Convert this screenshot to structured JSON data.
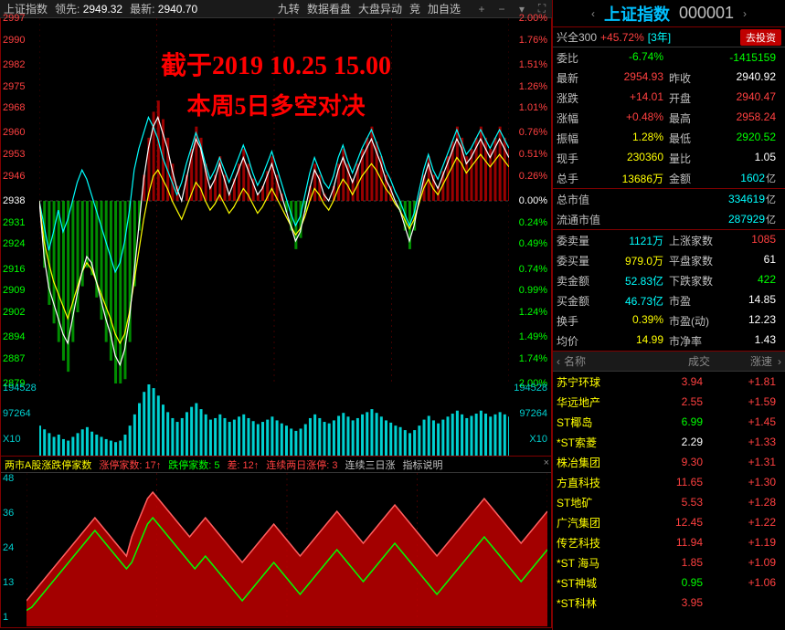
{
  "toolbar": {
    "title": "上证指数",
    "lead_label": "领先:",
    "lead_value": "2949.32",
    "latest_label": "最新:",
    "latest_value": "2940.70",
    "items": [
      "九转",
      "数据看盘",
      "大盘异动",
      "竞",
      "加自选"
    ]
  },
  "overlay": {
    "line1": "截于2019 10.25 15.00",
    "line2": "本周5日多空对决"
  },
  "main_chart": {
    "type": "line",
    "baseline": 2938,
    "ylim": [
      2879,
      2997
    ],
    "left_ticks": [
      {
        "v": 2997,
        "c": "#ff4040"
      },
      {
        "v": 2990,
        "c": "#ff4040"
      },
      {
        "v": 2982,
        "c": "#ff4040"
      },
      {
        "v": 2975,
        "c": "#ff4040"
      },
      {
        "v": 2968,
        "c": "#ff4040"
      },
      {
        "v": 2960,
        "c": "#ff4040"
      },
      {
        "v": 2953,
        "c": "#ff4040"
      },
      {
        "v": 2946,
        "c": "#ff4040"
      },
      {
        "v": 2938,
        "c": "#ffffff"
      },
      {
        "v": 2931,
        "c": "#00ff00"
      },
      {
        "v": 2924,
        "c": "#00ff00"
      },
      {
        "v": 2916,
        "c": "#00ff00"
      },
      {
        "v": 2909,
        "c": "#00ff00"
      },
      {
        "v": 2902,
        "c": "#00ff00"
      },
      {
        "v": 2894,
        "c": "#00ff00"
      },
      {
        "v": 2887,
        "c": "#00ff00"
      },
      {
        "v": 2879,
        "c": "#00ff00"
      }
    ],
    "right_ticks": [
      {
        "v": "2.00%",
        "c": "#ff4040"
      },
      {
        "v": "1.76%",
        "c": "#ff4040"
      },
      {
        "v": "1.51%",
        "c": "#ff4040"
      },
      {
        "v": "1.26%",
        "c": "#ff4040"
      },
      {
        "v": "1.01%",
        "c": "#ff4040"
      },
      {
        "v": "0.76%",
        "c": "#ff4040"
      },
      {
        "v": "0.51%",
        "c": "#ff4040"
      },
      {
        "v": "0.26%",
        "c": "#ff4040"
      },
      {
        "v": "0.00%",
        "c": "#ffffff"
      },
      {
        "v": "0.24%",
        "c": "#00ff00"
      },
      {
        "v": "0.49%",
        "c": "#00ff00"
      },
      {
        "v": "0.74%",
        "c": "#00ff00"
      },
      {
        "v": "0.99%",
        "c": "#00ff00"
      },
      {
        "v": "1.24%",
        "c": "#00ff00"
      },
      {
        "v": "1.49%",
        "c": "#00ff00"
      },
      {
        "v": "1.74%",
        "c": "#00ff00"
      },
      {
        "v": "2.00%",
        "c": "#00ff00"
      }
    ],
    "volume_ticks": [
      "194528",
      "97264",
      "X10"
    ],
    "white_line": [
      2938,
      2920,
      2910,
      2905,
      2900,
      2895,
      2892,
      2900,
      2908,
      2915,
      2920,
      2918,
      2912,
      2906,
      2900,
      2895,
      2888,
      2885,
      2890,
      2900,
      2915,
      2930,
      2945,
      2955,
      2962,
      2965,
      2960,
      2955,
      2948,
      2942,
      2938,
      2945,
      2952,
      2958,
      2955,
      2948,
      2942,
      2945,
      2950,
      2945,
      2940,
      2944,
      2948,
      2952,
      2948,
      2944,
      2940,
      2942,
      2946,
      2950,
      2945,
      2940,
      2935,
      2930,
      2925,
      2928,
      2935,
      2942,
      2948,
      2945,
      2940,
      2938,
      2942,
      2948,
      2952,
      2948,
      2944,
      2948,
      2952,
      2955,
      2958,
      2954,
      2950,
      2945,
      2942,
      2938,
      2935,
      2930,
      2925,
      2930,
      2938,
      2945,
      2950,
      2945,
      2942,
      2946,
      2950,
      2954,
      2958,
      2955,
      2950,
      2952,
      2955,
      2958,
      2955,
      2952,
      2955,
      2958,
      2955,
      2952
    ],
    "yellow_line": [
      2938,
      2925,
      2918,
      2912,
      2908,
      2904,
      2900,
      2905,
      2910,
      2915,
      2918,
      2916,
      2912,
      2908,
      2904,
      2900,
      2895,
      2892,
      2895,
      2902,
      2912,
      2922,
      2932,
      2940,
      2946,
      2948,
      2945,
      2942,
      2938,
      2935,
      2932,
      2936,
      2940,
      2944,
      2942,
      2938,
      2935,
      2937,
      2940,
      2937,
      2934,
      2936,
      2939,
      2942,
      2940,
      2937,
      2934,
      2936,
      2939,
      2942,
      2939,
      2936,
      2933,
      2930,
      2927,
      2929,
      2933,
      2938,
      2942,
      2940,
      2937,
      2935,
      2938,
      2942,
      2945,
      2943,
      2940,
      2943,
      2946,
      2948,
      2950,
      2948,
      2945,
      2942,
      2940,
      2937,
      2935,
      2932,
      2929,
      2932,
      2937,
      2942,
      2945,
      2942,
      2940,
      2943,
      2946,
      2949,
      2952,
      2950,
      2947,
      2949,
      2951,
      2953,
      2951,
      2949,
      2951,
      2953,
      2951,
      2949
    ],
    "cyan_line": [
      2938,
      2930,
      2922,
      2928,
      2935,
      2928,
      2932,
      2938,
      2944,
      2948,
      2945,
      2940,
      2935,
      2930,
      2925,
      2920,
      2915,
      2918,
      2925,
      2935,
      2948,
      2955,
      2960,
      2965,
      2962,
      2958,
      2952,
      2948,
      2944,
      2940,
      2944,
      2950,
      2955,
      2960,
      2956,
      2950,
      2945,
      2948,
      2952,
      2948,
      2944,
      2948,
      2952,
      2956,
      2952,
      2947,
      2943,
      2946,
      2950,
      2954,
      2949,
      2944,
      2939,
      2934,
      2930,
      2933,
      2940,
      2947,
      2952,
      2948,
      2944,
      2942,
      2946,
      2952,
      2956,
      2951,
      2947,
      2951,
      2955,
      2958,
      2961,
      2957,
      2953,
      2948,
      2945,
      2941,
      2938,
      2934,
      2930,
      2934,
      2941,
      2948,
      2953,
      2948,
      2945,
      2949,
      2953,
      2957,
      2961,
      2957,
      2953,
      2955,
      2958,
      2961,
      2958,
      2955,
      2958,
      2961,
      2958,
      2955
    ],
    "volumes": [
      40,
      35,
      30,
      25,
      28,
      22,
      20,
      25,
      30,
      35,
      38,
      32,
      28,
      25,
      22,
      20,
      18,
      20,
      28,
      40,
      55,
      70,
      85,
      95,
      90,
      80,
      68,
      58,
      50,
      45,
      50,
      58,
      65,
      70,
      62,
      55,
      48,
      50,
      55,
      50,
      45,
      48,
      52,
      55,
      50,
      46,
      42,
      45,
      48,
      52,
      47,
      43,
      40,
      36,
      33,
      36,
      42,
      50,
      55,
      50,
      45,
      43,
      47,
      53,
      57,
      52,
      47,
      50,
      55,
      58,
      62,
      57,
      52,
      47,
      44,
      40,
      38,
      34,
      30,
      34,
      40,
      48,
      53,
      47,
      43,
      48,
      52,
      56,
      60,
      55,
      50,
      53,
      56,
      60,
      56,
      52,
      55,
      58,
      55,
      52
    ]
  },
  "sub_chart": {
    "header_parts": [
      {
        "text": "两市A股涨跌停家数",
        "c": "#ffff00"
      },
      {
        "text": "涨停家数: 17↑",
        "c": "#ff4040"
      },
      {
        "text": "跌停家数: 5",
        "c": "#00ff00"
      },
      {
        "text": "差: 12↑",
        "c": "#ff4040"
      },
      {
        "text": "连续两日涨停: 3",
        "c": "#ff4040"
      },
      {
        "text": "连续三日涨",
        "c": "#c0c0c0"
      },
      {
        "text": "指标说明",
        "c": "#c0c0c0"
      }
    ],
    "y_ticks": [
      "48",
      "36",
      "24",
      "13",
      "1"
    ],
    "red_series": [
      8,
      10,
      12,
      14,
      16,
      18,
      20,
      22,
      24,
      26,
      28,
      30,
      32,
      34,
      32,
      30,
      28,
      26,
      24,
      22,
      28,
      32,
      36,
      40,
      42,
      40,
      38,
      36,
      34,
      32,
      30,
      28,
      30,
      32,
      34,
      32,
      30,
      28,
      26,
      24,
      22,
      20,
      22,
      24,
      26,
      28,
      30,
      32,
      30,
      28,
      26,
      24,
      22,
      24,
      26,
      28,
      30,
      32,
      34,
      36,
      34,
      32,
      30,
      28,
      26,
      28,
      30,
      32,
      34,
      36,
      38,
      36,
      34,
      32,
      30,
      28,
      26,
      24,
      22,
      24,
      26,
      28,
      30,
      32,
      34,
      36,
      38,
      40,
      38,
      36,
      34,
      32,
      30,
      28,
      26,
      28,
      30,
      32,
      34,
      36
    ],
    "green_series": [
      5,
      6,
      8,
      10,
      12,
      14,
      16,
      18,
      20,
      22,
      24,
      26,
      28,
      30,
      28,
      26,
      24,
      22,
      20,
      18,
      20,
      24,
      28,
      32,
      34,
      32,
      30,
      28,
      26,
      24,
      22,
      20,
      18,
      20,
      22,
      20,
      18,
      16,
      14,
      12,
      10,
      8,
      10,
      12,
      14,
      16,
      18,
      20,
      18,
      16,
      14,
      12,
      10,
      12,
      14,
      16,
      18,
      20,
      22,
      24,
      22,
      20,
      18,
      16,
      14,
      16,
      18,
      20,
      22,
      24,
      26,
      24,
      22,
      20,
      18,
      16,
      14,
      12,
      10,
      12,
      14,
      16,
      18,
      20,
      22,
      24,
      26,
      28,
      26,
      24,
      22,
      20,
      18,
      16,
      14,
      16,
      18,
      20,
      22,
      24
    ]
  },
  "right": {
    "index_name": "上证指数",
    "index_code": "000001",
    "ad": {
      "name": "兴全300",
      "pct": "+45.72%",
      "tag": "[3年]",
      "btn": "去投资"
    },
    "stats": [
      [
        {
          "label": "委比",
          "value": "-6.74%",
          "cls": "c-green"
        },
        {
          "label": "",
          "value": "-1415159",
          "cls": "c-green"
        }
      ],
      [
        {
          "label": "最新",
          "value": "2954.93",
          "cls": "c-red"
        },
        {
          "label": "昨收",
          "value": "2940.92",
          "cls": "c-white"
        }
      ],
      [
        {
          "label": "涨跌",
          "value": "+14.01",
          "cls": "c-red"
        },
        {
          "label": "开盘",
          "value": "2940.47",
          "cls": "c-red"
        }
      ],
      [
        {
          "label": "涨幅",
          "value": "+0.48%",
          "cls": "c-red"
        },
        {
          "label": "最高",
          "value": "2958.24",
          "cls": "c-red"
        }
      ],
      [
        {
          "label": "振幅",
          "value": "1.28%",
          "cls": "c-yellow"
        },
        {
          "label": "最低",
          "value": "2920.52",
          "cls": "c-green"
        }
      ],
      [
        {
          "label": "现手",
          "value": "230360",
          "cls": "c-yellow"
        },
        {
          "label": "量比",
          "value": "1.05",
          "cls": "c-white"
        }
      ],
      [
        {
          "label": "总手",
          "value": "13686万",
          "cls": "c-yellow"
        },
        {
          "label": "金额",
          "value": "1602",
          "cls": "c-cyan",
          "unit": "亿"
        }
      ]
    ],
    "stats2": [
      [
        {
          "label": "总市值",
          "value": "334619",
          "cls": "c-cyan",
          "unit": "亿",
          "span": true
        }
      ],
      [
        {
          "label": "流通市值",
          "value": "287929",
          "cls": "c-cyan",
          "unit": "亿",
          "span": true
        }
      ]
    ],
    "stats3": [
      [
        {
          "label": "委卖量",
          "value": "1121万",
          "cls": "c-cyan"
        },
        {
          "label": "上涨家数",
          "value": "1085",
          "cls": "c-red"
        }
      ],
      [
        {
          "label": "委买量",
          "value": "979.0万",
          "cls": "c-yellow"
        },
        {
          "label": "平盘家数",
          "value": "61",
          "cls": "c-white"
        }
      ],
      [
        {
          "label": "卖金额",
          "value": "52.83亿",
          "cls": "c-cyan"
        },
        {
          "label": "下跌家数",
          "value": "422",
          "cls": "c-green"
        }
      ],
      [
        {
          "label": "买金额",
          "value": "46.73亿",
          "cls": "c-cyan"
        },
        {
          "label": "市盈",
          "value": "14.85",
          "cls": "c-white"
        }
      ],
      [
        {
          "label": "换手",
          "value": "0.39%",
          "cls": "c-yellow"
        },
        {
          "label": "市盈(动)",
          "value": "12.23",
          "cls": "c-white"
        }
      ],
      [
        {
          "label": "均价",
          "value": "14.99",
          "cls": "c-yellow"
        },
        {
          "label": "市净率",
          "value": "1.43",
          "cls": "c-white"
        }
      ]
    ],
    "list_header": {
      "name": "名称",
      "vol": "成交",
      "chg": "涨速"
    },
    "stocks": [
      {
        "name": "苏宁环球",
        "vol": "3.94",
        "chg": "+1.81",
        "vc": "c-red"
      },
      {
        "name": "华远地产",
        "vol": "2.55",
        "chg": "+1.59",
        "vc": "c-red"
      },
      {
        "name": "ST椰岛",
        "vol": "6.99",
        "chg": "+1.45",
        "vc": "c-green"
      },
      {
        "name": "*ST索菱",
        "vol": "2.29",
        "chg": "+1.33",
        "vc": "c-white"
      },
      {
        "name": "株冶集团",
        "vol": "9.30",
        "chg": "+1.31",
        "vc": "c-red"
      },
      {
        "name": "方直科技",
        "vol": "11.65",
        "chg": "+1.30",
        "vc": "c-red"
      },
      {
        "name": "ST地矿",
        "vol": "5.53",
        "chg": "+1.28",
        "vc": "c-red"
      },
      {
        "name": "广汽集团",
        "vol": "12.45",
        "chg": "+1.22",
        "vc": "c-red"
      },
      {
        "name": "传艺科技",
        "vol": "11.94",
        "chg": "+1.19",
        "vc": "c-red"
      },
      {
        "name": "*ST 海马",
        "vol": "1.85",
        "chg": "+1.09",
        "vc": "c-red"
      },
      {
        "name": "*ST神城",
        "vol": "0.95",
        "chg": "+1.06",
        "vc": "c-green"
      },
      {
        "name": "*ST科林",
        "vol": "3.95",
        "chg": "",
        "vc": "c-red"
      }
    ]
  }
}
